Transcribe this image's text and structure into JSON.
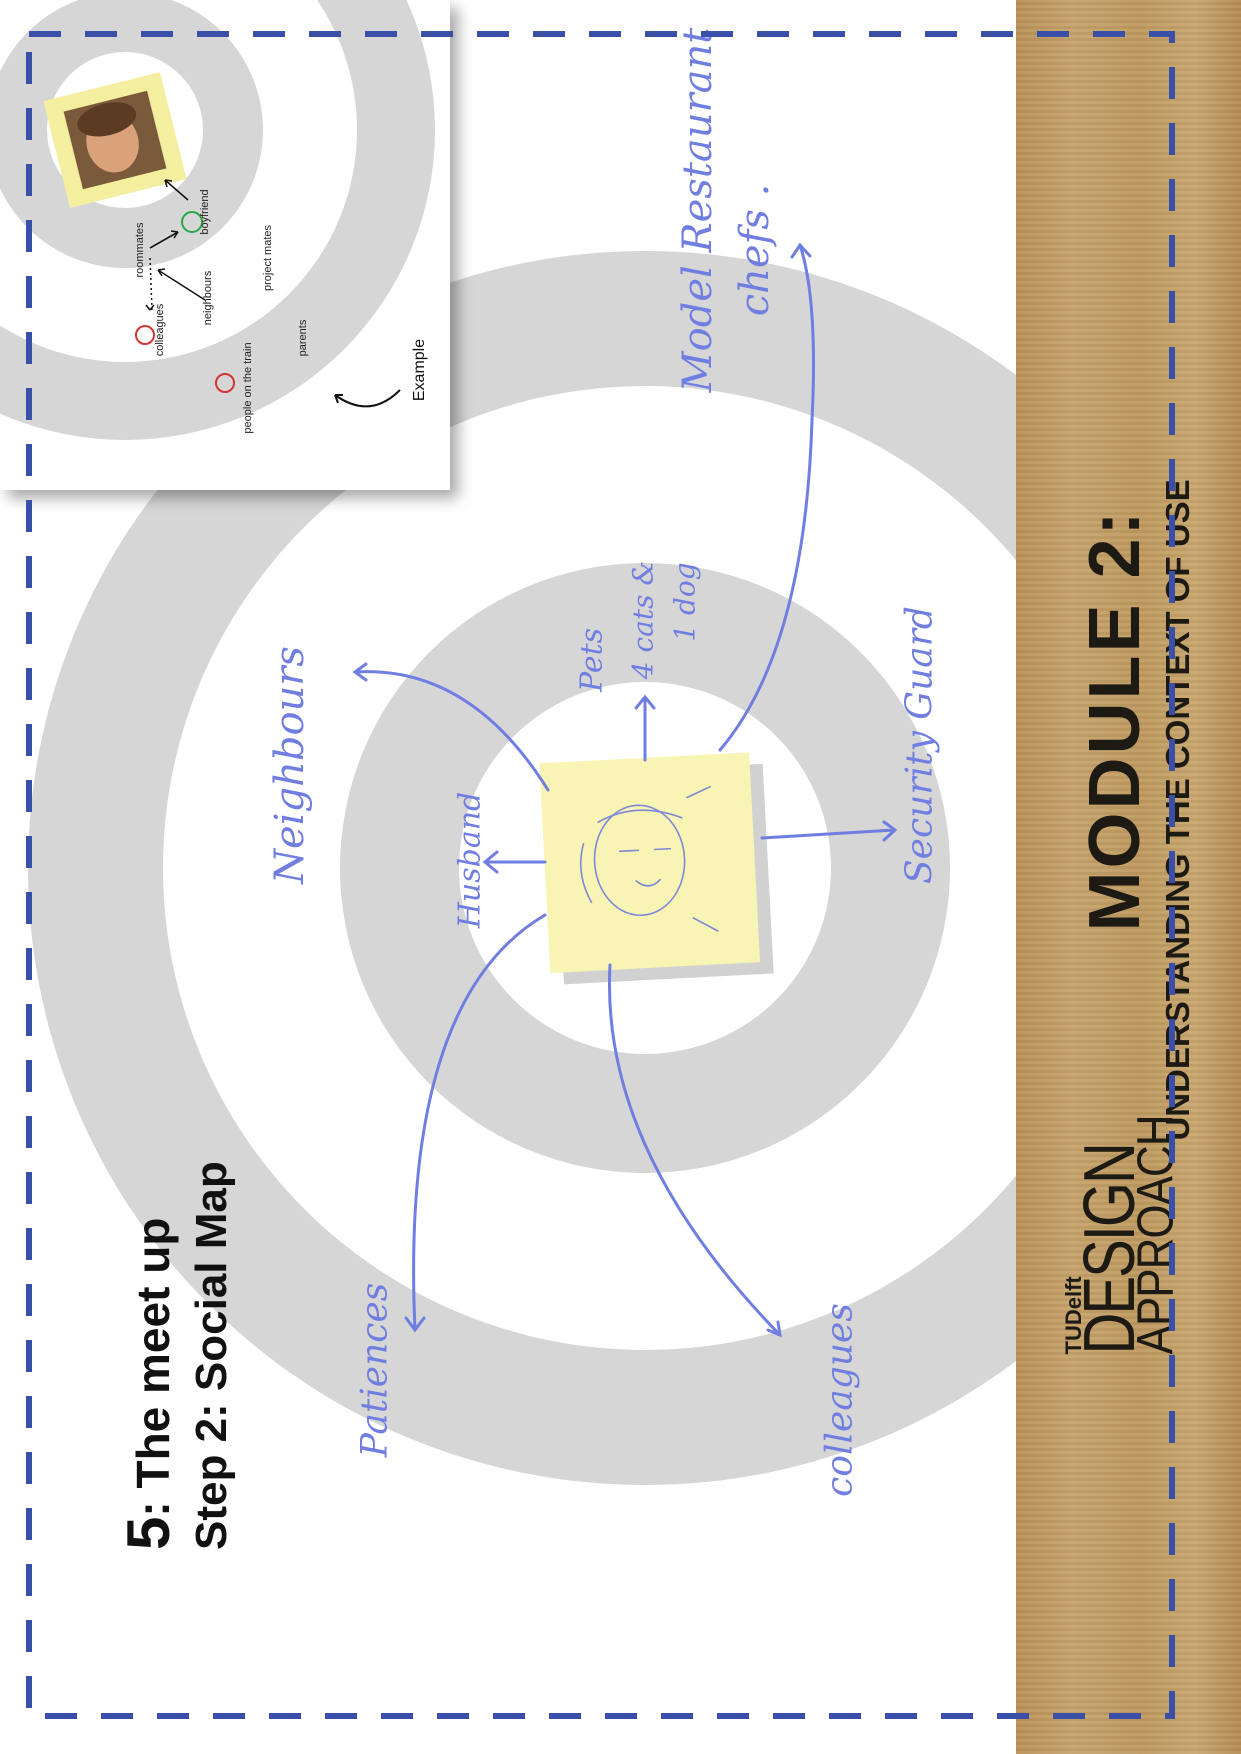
{
  "heading": {
    "step_number": "5",
    "step_title": ": The meet up",
    "sub_step": "Step 2: Social Map"
  },
  "strip": {
    "module_title": "MODULE 2:",
    "module_subtitle": "UNDERSTANDING THE CONTEXT OF USE",
    "logo": {
      "line1": "TUDelft",
      "line2": "DESIGN",
      "line3": "APPROACH"
    }
  },
  "example": {
    "label": "Example",
    "items": {
      "boyfriend": "boyfriend",
      "roommates": "roommates",
      "neighbours": "neighbours",
      "colleagues": "colleagues",
      "project_mates": "project mates",
      "parents": "parents",
      "people_on_train": "people on the train"
    }
  },
  "social_map": {
    "labels": {
      "husband": "Husband",
      "pets": "Pets",
      "pets_detail_1": "4 cats &",
      "pets_detail_2": "1 dog",
      "security_guard": "Security Guard",
      "neighbours": "Neighbours",
      "model_restaurant": "Model Restaurant",
      "chefs": "chefs .",
      "patiences": "Patiences",
      "colleagues": "colleagues"
    }
  },
  "colors": {
    "ring": "#d6d6d6",
    "handwriting": "#6f7ee0",
    "dashed_border": "#3a4fa8",
    "sticky_note": "#f8f4b4",
    "cardboard": "#c09a62"
  }
}
